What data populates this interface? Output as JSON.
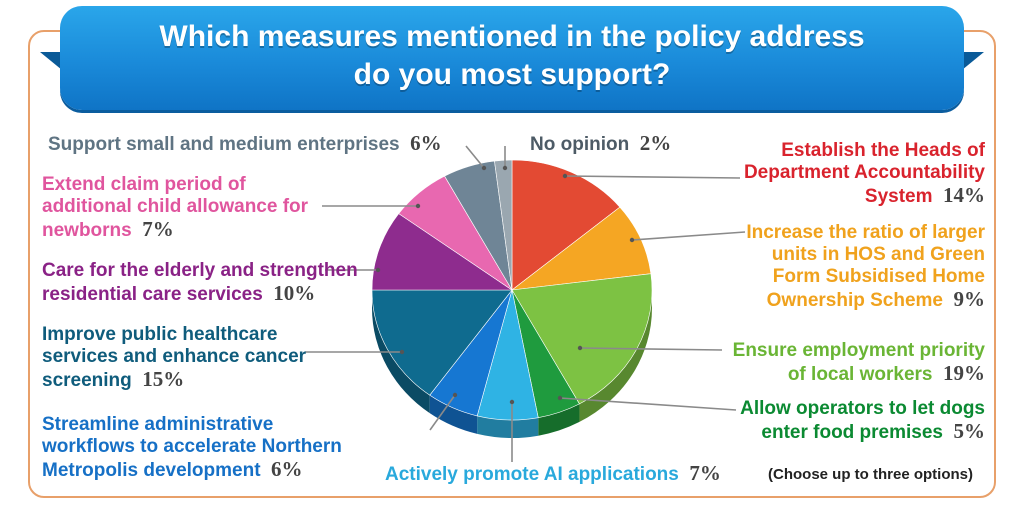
{
  "title_line1": "Which measures mentioned in the policy address",
  "title_line2": "do you most support?",
  "note": "(Choose up to three options)",
  "chart_data": {
    "type": "pie",
    "title": "Which measures mentioned in the policy address do you most support?",
    "slices": [
      {
        "label": "Establish the Heads of Department Accountability System",
        "value": 14,
        "color": "#e34a33"
      },
      {
        "label": "Increase the ratio of larger units in HOS and Green Form Subsidised Home Ownership Scheme",
        "value": 9,
        "color": "#f5a623"
      },
      {
        "label": "Ensure employment priority of local workers",
        "value": 19,
        "color": "#7dc243"
      },
      {
        "label": "Allow operators to let dogs enter food premises",
        "value": 5,
        "color": "#1f9b3e"
      },
      {
        "label": "Actively promote AI applications",
        "value": 7,
        "color": "#2fb3e4"
      },
      {
        "label": "Streamline administrative workflows to accelerate Northern Metropolis development",
        "value": 6,
        "color": "#1677d2"
      },
      {
        "label": "Improve public healthcare services and enhance cancer screening",
        "value": 15,
        "color": "#0f6b8f"
      },
      {
        "label": "Care for the elderly and strengthen residential care services",
        "value": 10,
        "color": "#8e2c8e"
      },
      {
        "label": "Extend claim period of additional child allowance for newborns",
        "value": 7,
        "color": "#e868b0"
      },
      {
        "label": "Support small and medium enterprises",
        "value": 6,
        "color": "#6f8596"
      },
      {
        "label": "No opinion",
        "value": 2,
        "color": "#9aa7b0"
      }
    ]
  },
  "labels": {
    "l0": {
      "lines": [
        "Establish the Heads of",
        "Department Accountability",
        "System"
      ],
      "pct": "14%",
      "color": "#d9232d"
    },
    "l1": {
      "lines": [
        "Increase the ratio of larger",
        "units in HOS and Green",
        "Form Subsidised Home",
        "Ownership Scheme"
      ],
      "pct": "9%",
      "color": "#f0a21d"
    },
    "l2": {
      "lines": [
        "Ensure employment priority",
        "of local workers"
      ],
      "pct": "19%",
      "color": "#6ab535"
    },
    "l3": {
      "lines": [
        "Allow operators to let dogs",
        "enter food premises"
      ],
      "pct": "5%",
      "color": "#0b8a32"
    },
    "l4": {
      "lines": [
        "Actively promote AI applications"
      ],
      "pct": "7%",
      "color": "#29a9dc"
    },
    "l5": {
      "lines": [
        "Streamline administrative",
        "workflows to accelerate Northern",
        "Metropolis development"
      ],
      "pct": "6%",
      "color": "#1670c6"
    },
    "l6": {
      "lines": [
        "Improve public healthcare",
        "services and enhance cancer",
        "screening"
      ],
      "pct": "15%",
      "color": "#0f5c7c"
    },
    "l7": {
      "lines": [
        "Care for the elderly and strengthen",
        "residential care services"
      ],
      "pct": "10%",
      "color": "#8a2286"
    },
    "l8": {
      "lines": [
        "Extend claim period of",
        "additional child allowance for",
        "newborns"
      ],
      "pct": "7%",
      "color": "#e0559e"
    },
    "l9": {
      "lines": [
        "Support small and medium enterprises"
      ],
      "pct": "6%",
      "color": "#5f7483"
    },
    "l10": {
      "lines": [
        "No opinion"
      ],
      "pct": "2%",
      "color": "#4d5b66"
    }
  }
}
